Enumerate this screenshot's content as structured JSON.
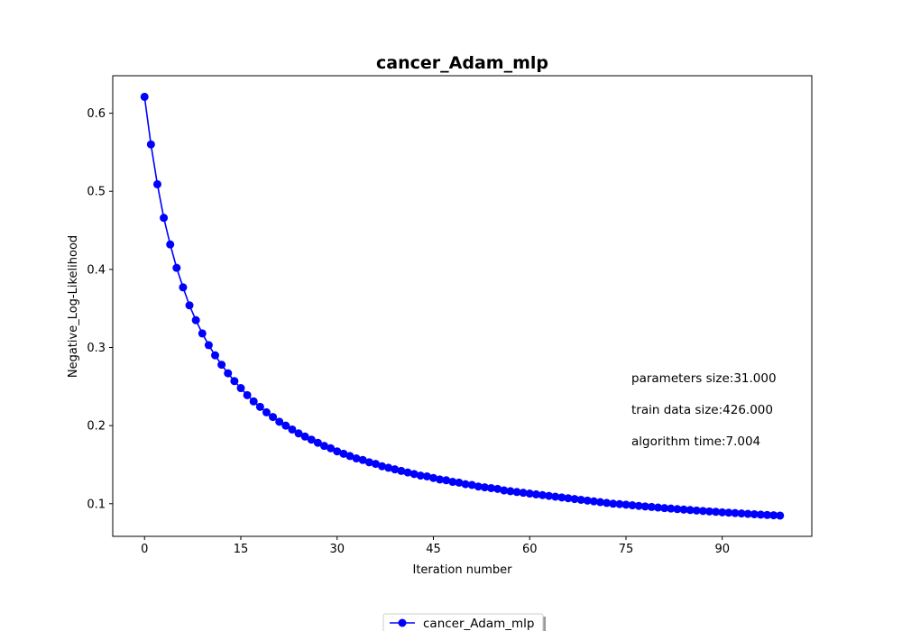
{
  "chart_data": {
    "type": "line",
    "title": "cancer_Adam_mlp",
    "xlabel": "Iteration number",
    "ylabel": "Negative_Log-Likelihood",
    "xlim": [
      -4.95,
      103.95
    ],
    "ylim": [
      0.0582,
      0.648
    ],
    "xticks": [
      0,
      15,
      30,
      45,
      60,
      75,
      90
    ],
    "yticks": [
      0.1,
      0.2,
      0.3,
      0.4,
      0.5,
      0.6
    ],
    "ytick_labels": [
      "0.1",
      "0.2",
      "0.3",
      "0.4",
      "0.5",
      "0.6"
    ],
    "grid": false,
    "legend_position": "bottom-center",
    "series": [
      {
        "name": "cancer_Adam_mlp",
        "color": "#0000ff",
        "marker": "circle",
        "x": [
          0,
          1,
          2,
          3,
          4,
          5,
          6,
          7,
          8,
          9,
          10,
          11,
          12,
          13,
          14,
          15,
          16,
          17,
          18,
          19,
          20,
          21,
          22,
          23,
          24,
          25,
          26,
          27,
          28,
          29,
          30,
          31,
          32,
          33,
          34,
          35,
          36,
          37,
          38,
          39,
          40,
          41,
          42,
          43,
          44,
          45,
          46,
          47,
          48,
          49,
          50,
          51,
          52,
          53,
          54,
          55,
          56,
          57,
          58,
          59,
          60,
          61,
          62,
          63,
          64,
          65,
          66,
          67,
          68,
          69,
          70,
          71,
          72,
          73,
          74,
          75,
          76,
          77,
          78,
          79,
          80,
          81,
          82,
          83,
          84,
          85,
          86,
          87,
          88,
          89,
          90,
          91,
          92,
          93,
          94,
          95,
          96,
          97,
          98,
          99
        ],
        "values": [
          0.621,
          0.56,
          0.509,
          0.466,
          0.432,
          0.402,
          0.377,
          0.354,
          0.335,
          0.318,
          0.303,
          0.29,
          0.278,
          0.267,
          0.257,
          0.248,
          0.239,
          0.231,
          0.224,
          0.217,
          0.211,
          0.205,
          0.2,
          0.195,
          0.19,
          0.186,
          0.182,
          0.178,
          0.174,
          0.171,
          0.167,
          0.164,
          0.161,
          0.158,
          0.156,
          0.153,
          0.151,
          0.148,
          0.146,
          0.144,
          0.142,
          0.14,
          0.138,
          0.136,
          0.135,
          0.133,
          0.131,
          0.13,
          0.128,
          0.127,
          0.125,
          0.124,
          0.122,
          0.121,
          0.12,
          0.119,
          0.117,
          0.116,
          0.115,
          0.114,
          0.113,
          0.112,
          0.111,
          0.11,
          0.109,
          0.108,
          0.107,
          0.106,
          0.105,
          0.104,
          0.103,
          0.102,
          0.101,
          0.1,
          0.0995,
          0.0988,
          0.098,
          0.0972,
          0.0965,
          0.0958,
          0.0951,
          0.0944,
          0.0938,
          0.0931,
          0.0925,
          0.0919,
          0.0913,
          0.0907,
          0.0901,
          0.0896,
          0.089,
          0.0885,
          0.088,
          0.0875,
          0.087,
          0.0865,
          0.086,
          0.0856,
          0.0852,
          0.0848
        ]
      }
    ],
    "annotations": [
      "parameters size:31.000",
      "train data size:426.000",
      "algorithm time:7.004"
    ]
  }
}
